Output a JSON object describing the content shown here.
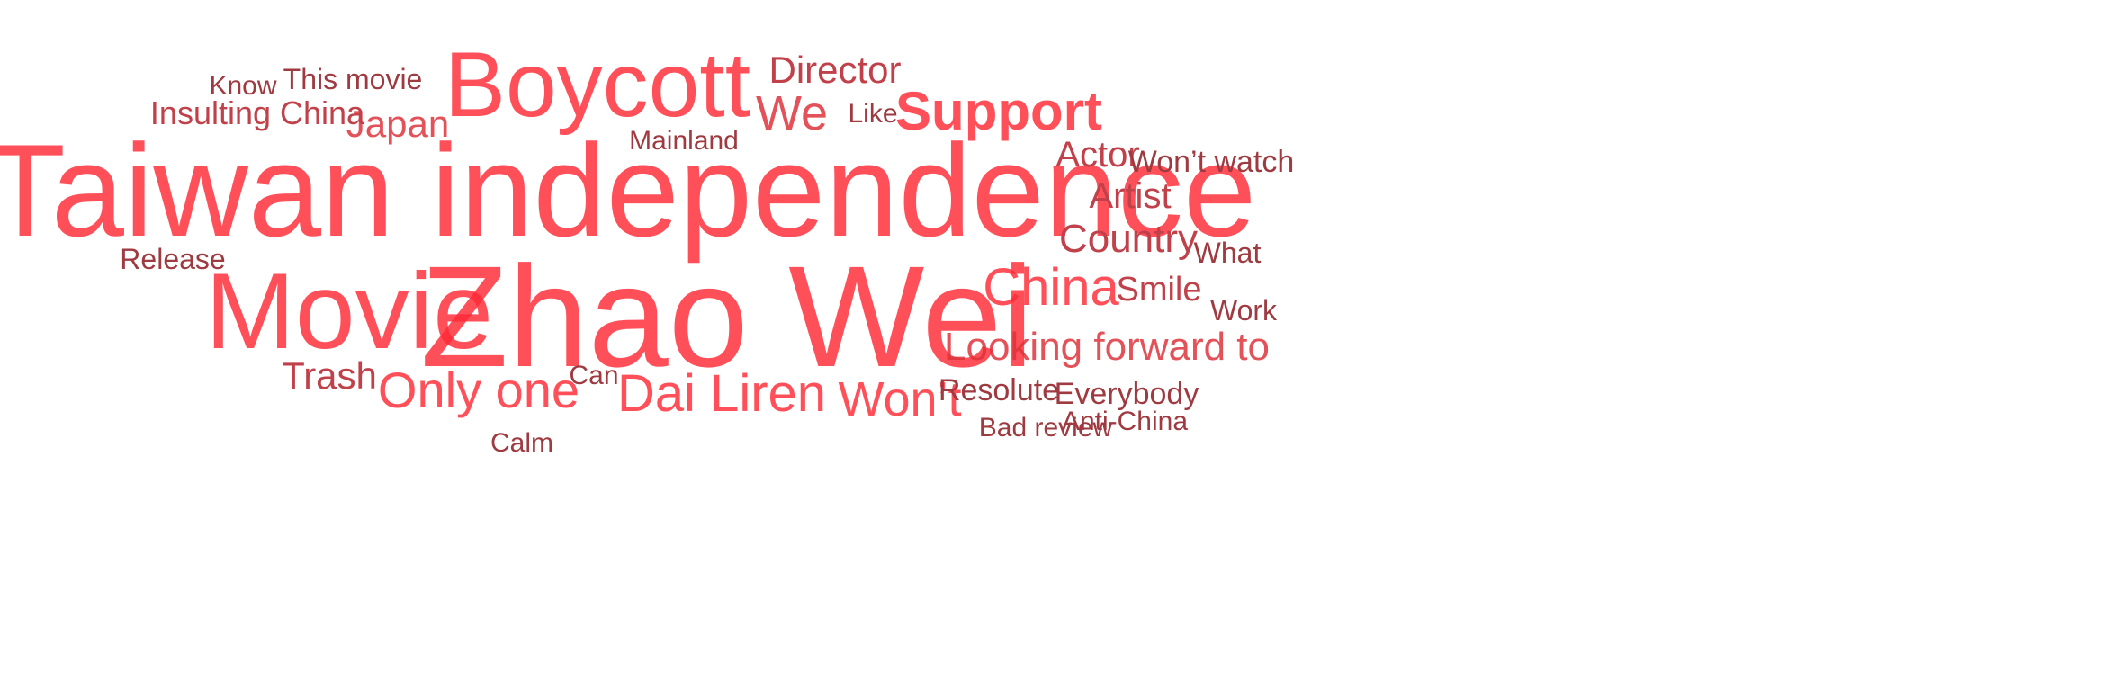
{
  "words": [
    {
      "id": "taiwan-independence",
      "text": "Taiwan independence",
      "weight": 100
    },
    {
      "id": "zhao-wei",
      "text": "Zhao Wei",
      "weight": 98
    },
    {
      "id": "movie",
      "text": "Movie",
      "weight": 80
    },
    {
      "id": "boycott",
      "text": "Boycott",
      "weight": 70
    },
    {
      "id": "support",
      "text": "Support",
      "weight": 55
    },
    {
      "id": "china",
      "text": "China",
      "weight": 48
    },
    {
      "id": "dai-liren",
      "text": "Dai Liren",
      "weight": 46
    },
    {
      "id": "only-one",
      "text": "Only one",
      "weight": 44
    },
    {
      "id": "wont",
      "text": "Won’t",
      "weight": 42
    },
    {
      "id": "looking-forward-to",
      "text": "Looking forward to",
      "weight": 38
    },
    {
      "id": "we",
      "text": "We",
      "weight": 38
    },
    {
      "id": "country",
      "text": "Country",
      "weight": 34
    },
    {
      "id": "japan",
      "text": "Japan",
      "weight": 32
    },
    {
      "id": "director",
      "text": "Director",
      "weight": 32
    },
    {
      "id": "trash",
      "text": "Trash",
      "weight": 32
    },
    {
      "id": "actor",
      "text": "Actor",
      "weight": 30
    },
    {
      "id": "artist",
      "text": "Artist",
      "weight": 30
    },
    {
      "id": "smile",
      "text": "Smile",
      "weight": 28
    },
    {
      "id": "insulting-china",
      "text": "Insulting China",
      "weight": 28
    },
    {
      "id": "wont-watch",
      "text": "Won’t watch",
      "weight": 26
    },
    {
      "id": "resolute",
      "text": "Resolute",
      "weight": 26
    },
    {
      "id": "everybody",
      "text": "Everybody",
      "weight": 26
    },
    {
      "id": "this-movie",
      "text": "This movie",
      "weight": 24
    },
    {
      "id": "mainland",
      "text": "Mainland",
      "weight": 24
    },
    {
      "id": "what",
      "text": "What",
      "weight": 24
    },
    {
      "id": "work",
      "text": "Work",
      "weight": 24
    },
    {
      "id": "release",
      "text": "Release",
      "weight": 24
    },
    {
      "id": "can",
      "text": "Can",
      "weight": 22
    },
    {
      "id": "anti-china",
      "text": "Anti-China",
      "weight": 22
    },
    {
      "id": "bad-review",
      "text": "Bad review",
      "weight": 22
    },
    {
      "id": "calm",
      "text": "Calm",
      "weight": 22
    },
    {
      "id": "know",
      "text": "Know",
      "weight": 22
    },
    {
      "id": "like",
      "text": "Like",
      "weight": 22
    }
  ]
}
